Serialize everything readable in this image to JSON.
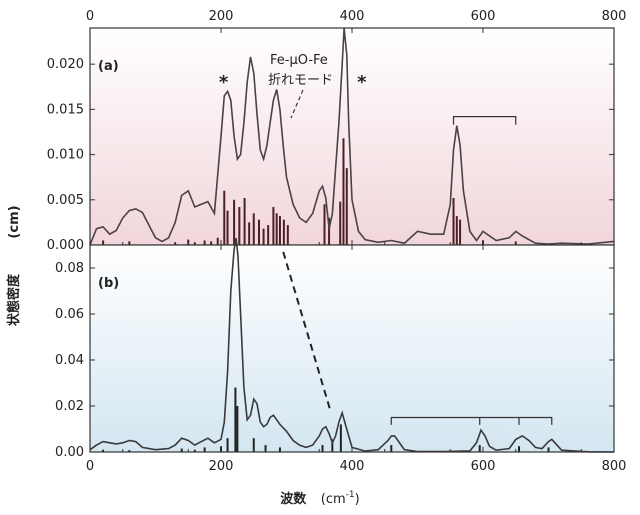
{
  "chart_data": [
    {
      "panel": "a",
      "type": "line",
      "panel_label": "(a)",
      "xlim": [
        0,
        800
      ],
      "ylim": [
        0,
        0.024
      ],
      "x_ticks": [
        "0",
        "200",
        "400",
        "600",
        "800"
      ],
      "y_ticks": [
        "0.000",
        "0.005",
        "0.010",
        "0.015",
        "0.020"
      ],
      "ylabel_unit": "(cm)",
      "background_gradient": [
        "#ffffff",
        "#f1d6db"
      ],
      "line_color": "#4a4246",
      "stick_color": "#4a1f26",
      "curve": {
        "x": [
          0,
          10,
          20,
          30,
          40,
          50,
          60,
          70,
          80,
          90,
          100,
          110,
          120,
          130,
          140,
          150,
          160,
          170,
          180,
          190,
          200,
          205,
          210,
          215,
          220,
          225,
          230,
          235,
          240,
          245,
          250,
          255,
          260,
          265,
          270,
          275,
          280,
          285,
          290,
          295,
          300,
          310,
          320,
          330,
          340,
          350,
          355,
          360,
          365,
          370,
          375,
          380,
          385,
          388,
          392,
          395,
          400,
          410,
          420,
          440,
          460,
          480,
          500,
          520,
          540,
          550,
          555,
          560,
          565,
          570,
          580,
          590,
          600,
          620,
          640,
          650,
          660,
          680,
          700,
          720,
          760,
          800
        ],
        "y": [
          0.0,
          0.0018,
          0.002,
          0.0012,
          0.0016,
          0.003,
          0.0038,
          0.004,
          0.0036,
          0.0022,
          0.0008,
          0.0004,
          0.0008,
          0.0025,
          0.0055,
          0.006,
          0.0042,
          0.0045,
          0.0048,
          0.0035,
          0.012,
          0.0165,
          0.017,
          0.016,
          0.012,
          0.0095,
          0.01,
          0.0135,
          0.018,
          0.0208,
          0.019,
          0.0145,
          0.0105,
          0.0095,
          0.011,
          0.0135,
          0.016,
          0.0172,
          0.015,
          0.011,
          0.0075,
          0.0045,
          0.003,
          0.0025,
          0.0035,
          0.006,
          0.0065,
          0.0052,
          0.0018,
          0.0035,
          0.0085,
          0.0135,
          0.02,
          0.024,
          0.021,
          0.0135,
          0.005,
          0.0015,
          0.0006,
          0.0003,
          0.0005,
          0.0002,
          0.0015,
          0.0012,
          0.0012,
          0.0045,
          0.0105,
          0.0132,
          0.011,
          0.006,
          0.0015,
          0.0005,
          0.0015,
          0.0005,
          0.0008,
          0.0015,
          0.001,
          0.0002,
          0.0001,
          0.0002,
          0.0001,
          0.0004
        ]
      },
      "sticks": {
        "x": [
          20,
          60,
          130,
          150,
          160,
          175,
          185,
          195,
          205,
          210,
          220,
          228,
          236,
          243,
          250,
          258,
          265,
          272,
          280,
          285,
          290,
          296,
          302,
          358,
          365,
          382,
          387,
          392,
          555,
          560,
          565,
          600,
          650
        ],
        "y": [
          0.0005,
          0.0004,
          0.0003,
          0.0006,
          0.0003,
          0.0005,
          0.0004,
          0.0008,
          0.006,
          0.0038,
          0.005,
          0.0042,
          0.0052,
          0.0025,
          0.0035,
          0.0028,
          0.0018,
          0.0022,
          0.0042,
          0.0035,
          0.0032,
          0.0028,
          0.0022,
          0.0045,
          0.003,
          0.0048,
          0.0118,
          0.0085,
          0.0052,
          0.0032,
          0.0028,
          0.0005,
          0.0004
        ]
      },
      "annotations": {
        "text_line1": "Fe-μO-Fe",
        "text_line2": "折れモード",
        "star1": "*",
        "star2": "*"
      },
      "bracket": {
        "x": [
          555,
          650
        ],
        "y": 0.0142,
        "tick_depth": 0.0009
      }
    },
    {
      "panel": "b",
      "type": "line",
      "panel_label": "(b)",
      "xlim": [
        0,
        800
      ],
      "ylim": [
        0,
        0.09
      ],
      "x_ticks": [
        "0",
        "200",
        "400",
        "600",
        "800"
      ],
      "y_ticks": [
        "0.00",
        "0.02",
        "0.04",
        "0.06",
        "0.08"
      ],
      "xlabel": "波数",
      "xlabel_unit": "(cm",
      "xlabel_unit_exp": "-1",
      "xlabel_unit_close": ")",
      "background_gradient": [
        "#ffffff",
        "#d4e6f1"
      ],
      "line_color": "#3a3a3a",
      "stick_color": "#222222",
      "curve": {
        "x": [
          0,
          10,
          20,
          30,
          40,
          50,
          60,
          70,
          80,
          100,
          120,
          130,
          140,
          150,
          160,
          170,
          180,
          190,
          200,
          205,
          210,
          215,
          220,
          223,
          226,
          230,
          235,
          240,
          245,
          250,
          255,
          260,
          265,
          270,
          275,
          280,
          285,
          290,
          300,
          310,
          320,
          330,
          340,
          350,
          355,
          360,
          365,
          370,
          375,
          380,
          385,
          390,
          400,
          420,
          440,
          455,
          460,
          465,
          470,
          480,
          500,
          540,
          580,
          590,
          597,
          603,
          610,
          620,
          640,
          650,
          660,
          670,
          680,
          690,
          700,
          705,
          710,
          720,
          760,
          800
        ],
        "y": [
          0.001,
          0.003,
          0.0045,
          0.004,
          0.0035,
          0.004,
          0.005,
          0.0045,
          0.002,
          0.001,
          0.0015,
          0.003,
          0.006,
          0.005,
          0.003,
          0.0045,
          0.006,
          0.004,
          0.0055,
          0.013,
          0.035,
          0.07,
          0.088,
          0.093,
          0.085,
          0.06,
          0.028,
          0.014,
          0.016,
          0.023,
          0.021,
          0.013,
          0.011,
          0.012,
          0.015,
          0.016,
          0.014,
          0.012,
          0.009,
          0.005,
          0.003,
          0.002,
          0.003,
          0.007,
          0.01,
          0.011,
          0.008,
          0.004,
          0.007,
          0.013,
          0.017,
          0.012,
          0.002,
          0.0004,
          0.001,
          0.005,
          0.007,
          0.007,
          0.005,
          0.001,
          0.0002,
          0.0002,
          0.0005,
          0.004,
          0.0095,
          0.007,
          0.0025,
          0.0008,
          0.0015,
          0.0055,
          0.007,
          0.005,
          0.002,
          0.0015,
          0.0045,
          0.0055,
          0.004,
          0.0008,
          0.0001,
          0.0
        ]
      },
      "sticks": {
        "x": [
          20,
          60,
          140,
          160,
          175,
          200,
          210,
          222,
          225,
          250,
          268,
          290,
          355,
          370,
          383,
          460,
          595,
          655,
          700
        ],
        "y": [
          0.001,
          0.0008,
          0.0015,
          0.001,
          0.002,
          0.0025,
          0.006,
          0.028,
          0.02,
          0.006,
          0.003,
          0.002,
          0.003,
          0.0055,
          0.012,
          0.003,
          0.003,
          0.0025,
          0.002
        ]
      },
      "bracket": {
        "x": [
          460,
          595,
          655,
          705
        ],
        "y": 0.015,
        "tick_depth": 0.0032
      },
      "dashed_line": {
        "from": [
          295,
          0.087
        ],
        "to": [
          368,
          0.017
        ]
      }
    }
  ],
  "shared_ylabel": "状態密度"
}
